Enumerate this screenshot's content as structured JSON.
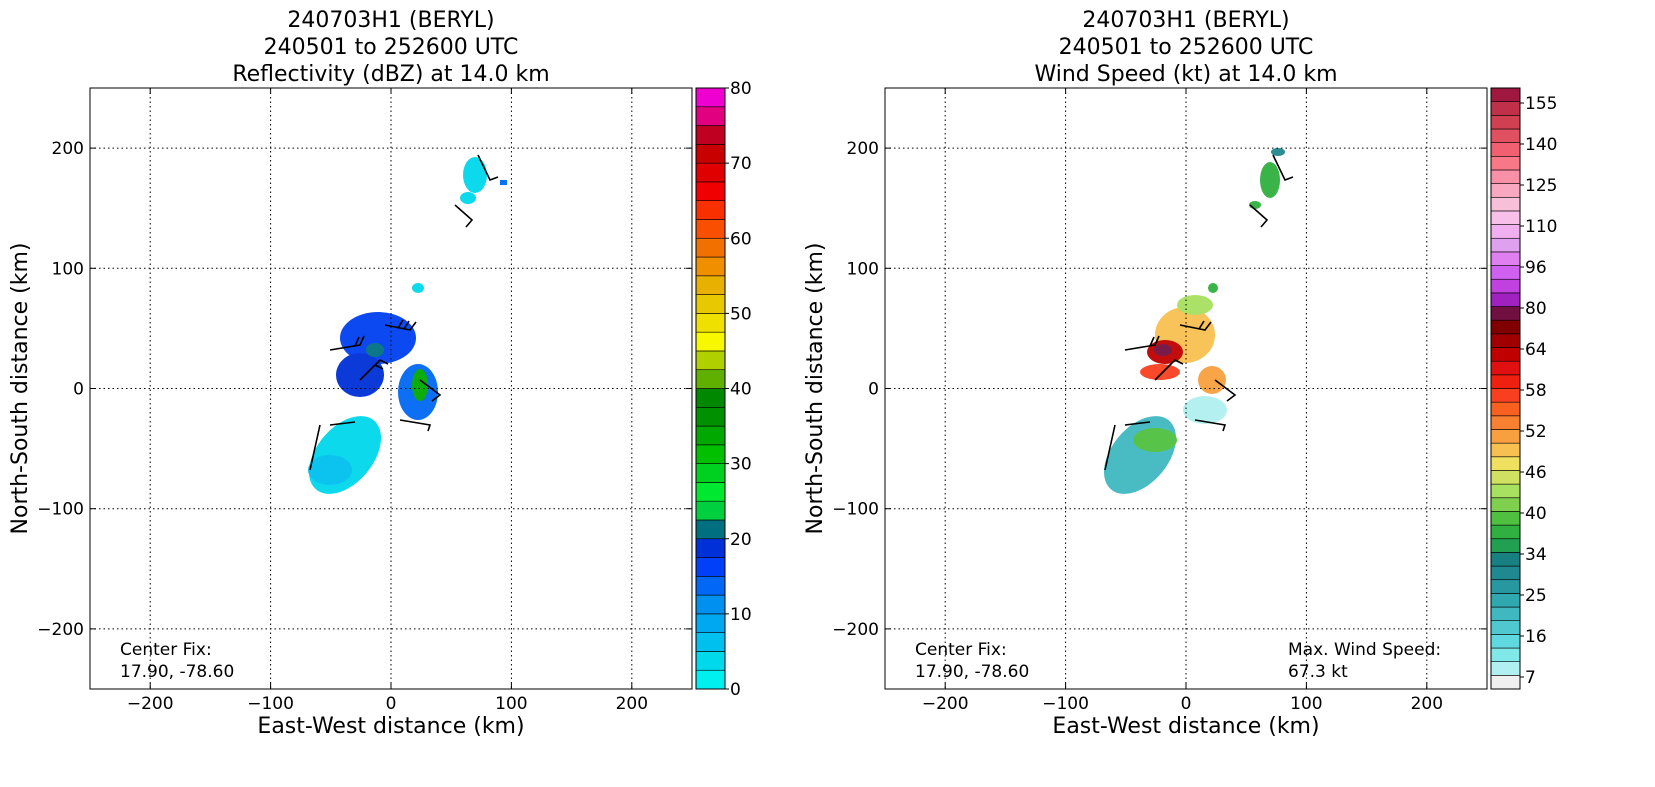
{
  "chart_data": [
    {
      "type": "heatmap",
      "title_lines": [
        "240703H1 (BERYL)",
        "240501 to 252600 UTC",
        "Reflectivity (dBZ) at 14.0 km"
      ],
      "xlabel": "East-West distance (km)",
      "ylabel": "North-South distance (km)",
      "xlim": [
        -250,
        250
      ],
      "ylim": [
        -250,
        250
      ],
      "xticks": [
        {
          "value": -200,
          "label": "−200"
        },
        {
          "value": -100,
          "label": "−100"
        },
        0,
        100,
        200
      ],
      "yticks": [
        {
          "value": -200,
          "label": "−200"
        },
        {
          "value": -100,
          "label": "−100"
        },
        0,
        100,
        200
      ],
      "grid": true,
      "annotations": [
        {
          "lines": [
            "Center Fix:",
            "17.90, -78.60"
          ],
          "corner": "lower left"
        }
      ],
      "colorbar": {
        "clim": [
          0,
          80
        ],
        "ticks": [
          0,
          10,
          20,
          30,
          40,
          50,
          60,
          70,
          80
        ],
        "colors": [
          "#00f0f0",
          "#00d8ec",
          "#00c0f0",
          "#00a8f0",
          "#0090f0",
          "#0068f4",
          "#0040f8",
          "#0030d8",
          "#007080",
          "#00d040",
          "#00e830",
          "#00d020",
          "#00c000",
          "#00a800",
          "#009000",
          "#008800",
          "#60b000",
          "#b0d000",
          "#f8f800",
          "#f0e000",
          "#e8c800",
          "#e8b000",
          "#f09000",
          "#f07000",
          "#f85000",
          "#f83000",
          "#f00000",
          "#e00000",
          "#c80000",
          "#c00020",
          "#e00080",
          "#f000d0"
        ]
      }
    },
    {
      "type": "heatmap",
      "title_lines": [
        "240703H1 (BERYL)",
        "240501 to 252600 UTC",
        "Wind Speed (kt) at 14.0 km"
      ],
      "xlabel": "East-West distance (km)",
      "ylabel": "North-South distance (km)",
      "xlim": [
        -250,
        250
      ],
      "ylim": [
        -250,
        250
      ],
      "xticks": [
        {
          "value": -200,
          "label": "−200"
        },
        {
          "value": -100,
          "label": "−100"
        },
        0,
        100,
        200
      ],
      "yticks": [
        {
          "value": -200,
          "label": "−200"
        },
        {
          "value": -100,
          "label": "−100"
        },
        0,
        100,
        200
      ],
      "grid": true,
      "annotations": [
        {
          "lines": [
            "Center Fix:",
            "17.90, -78.60"
          ],
          "corner": "lower left"
        },
        {
          "lines": [
            "Max. Wind Speed:",
            "67.3 kt"
          ],
          "corner": "lower right"
        }
      ],
      "colorbar": {
        "ticks": [
          7,
          16,
          25,
          34,
          40,
          46,
          52,
          58,
          64,
          80,
          96,
          110,
          125,
          140,
          155
        ],
        "colors": [
          "#f0f0f0",
          "#b0f0f0",
          "#80e8e8",
          "#60d8e0",
          "#50c8d0",
          "#40b8c0",
          "#30a8b0",
          "#2898a0",
          "#208890",
          "#188080",
          "#20a050",
          "#30b040",
          "#50c040",
          "#80d050",
          "#a8e060",
          "#d0e060",
          "#f0e060",
          "#f8c050",
          "#f8a040",
          "#f88030",
          "#f86020",
          "#f84020",
          "#f02010",
          "#e01010",
          "#c00000",
          "#a00000",
          "#800000",
          "#701040",
          "#a020c0",
          "#c040e0",
          "#d060f0",
          "#e080f0",
          "#e0a0f0",
          "#f0b0f0",
          "#f8c0e8",
          "#f8c0d8",
          "#f8a8c0",
          "#f890a8",
          "#f87888",
          "#f06070",
          "#e05060",
          "#d04050",
          "#c03048",
          "#a01840"
        ]
      }
    }
  ]
}
